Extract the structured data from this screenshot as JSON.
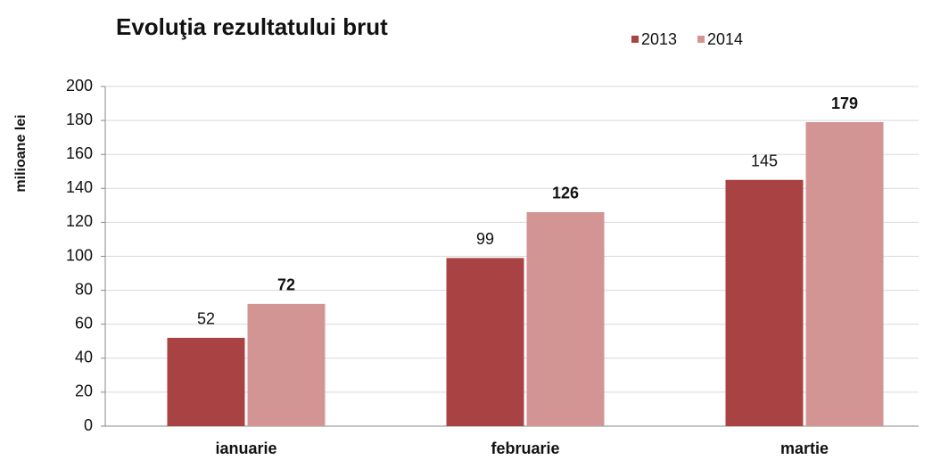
{
  "chart_data": {
    "type": "bar",
    "title": "Evoluţia rezultatului brut",
    "y_label": "milioane lei",
    "categories": [
      "ianuarie",
      "februarie",
      "martie"
    ],
    "series": [
      {
        "name": "2013",
        "color": "#a94343",
        "values": [
          52,
          99,
          145
        ]
      },
      {
        "name": "2014",
        "color": "#d39494",
        "values": [
          72,
          126,
          179
        ]
      }
    ],
    "ylim": [
      0,
      200
    ],
    "yticks": [
      0,
      20,
      40,
      60,
      80,
      100,
      120,
      140,
      160,
      180,
      200
    ],
    "grid": true,
    "legend": "top"
  }
}
